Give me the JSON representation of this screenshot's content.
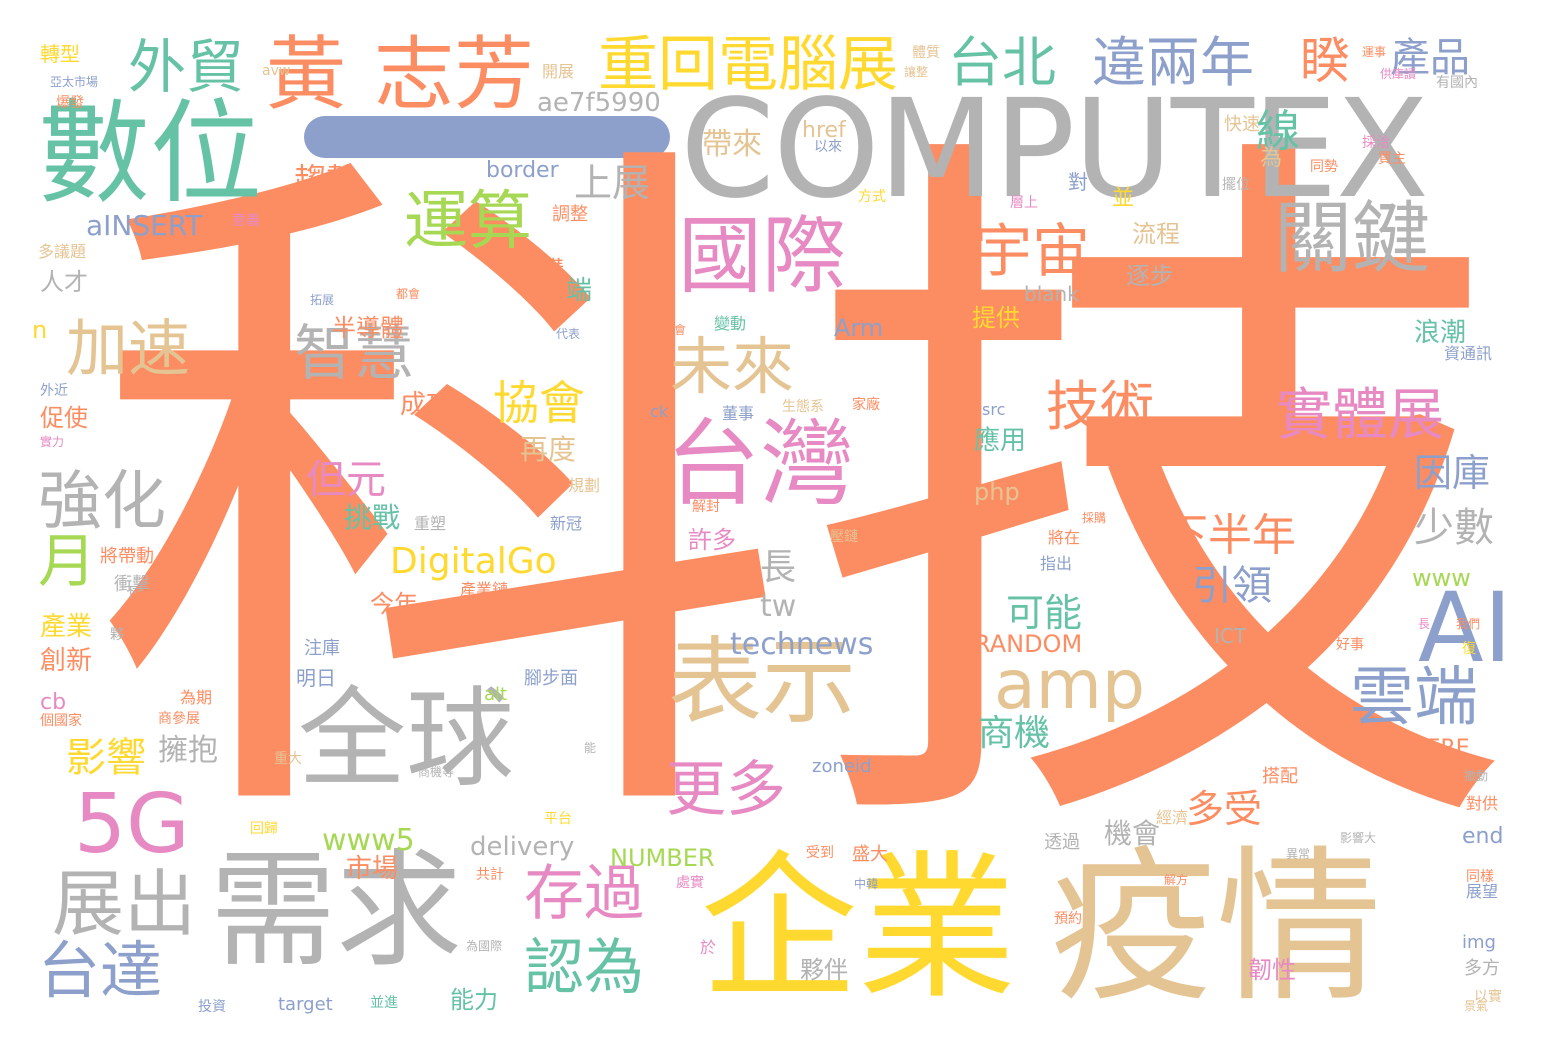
{
  "palette": {
    "orange": "#fc8d62",
    "gray": "#b3b3b3",
    "teal": "#66c2a5",
    "blue": "#8da0cb",
    "pink": "#e78ac3",
    "green": "#a6d854",
    "yellow": "#ffd92f",
    "tan": "#e5c494"
  },
  "dash_color": "#8da0cb",
  "words": [
    {
      "text": "科",
      "color": "#fc8d62"
    },
    {
      "text": "技",
      "color": "#fc8d62"
    },
    {
      "text": "COMPUTEX",
      "color": "#b3b3b3"
    },
    {
      "text": "數位",
      "color": "#66c2a5"
    },
    {
      "text": "黃",
      "color": "#fc8d62"
    },
    {
      "text": "志芳",
      "color": "#fc8d62"
    },
    {
      "text": "外貿",
      "color": "#66c2a5"
    },
    {
      "text": "重回電腦展",
      "color": "#ffd92f"
    },
    {
      "text": "台北",
      "color": "#66c2a5"
    },
    {
      "text": "違兩年",
      "color": "#8da0cb"
    },
    {
      "text": "睽",
      "color": "#fc8d62"
    },
    {
      "text": "產品",
      "color": "#8da0cb"
    },
    {
      "text": "轉型",
      "color": "#ffd92f"
    },
    {
      "text": "ae7f5990",
      "color": "#b3b3b3"
    },
    {
      "text": "國際",
      "color": "#e78ac3"
    },
    {
      "text": "關鍵",
      "color": "#b3b3b3"
    },
    {
      "text": "宇宙",
      "color": "#fc8d62"
    },
    {
      "text": "運算",
      "color": "#a6d854"
    },
    {
      "text": "加速",
      "color": "#e5c494"
    },
    {
      "text": "智慧",
      "color": "#b3b3b3"
    },
    {
      "text": "台灣",
      "color": "#e78ac3"
    },
    {
      "text": "AI",
      "color": "#8da0cb"
    },
    {
      "text": "實體展",
      "color": "#e78ac3"
    },
    {
      "text": "技術",
      "color": "#fc8d62"
    },
    {
      "text": "未來",
      "color": "#e5c494"
    },
    {
      "text": "協會",
      "color": "#ffd92f"
    },
    {
      "text": "強化",
      "color": "#b3b3b3"
    },
    {
      "text": "月",
      "color": "#a6d854"
    },
    {
      "text": "表示",
      "color": "#e5c494"
    },
    {
      "text": "amp",
      "color": "#e5c494"
    },
    {
      "text": "雲端",
      "color": "#8da0cb"
    },
    {
      "text": "全球",
      "color": "#b3b3b3"
    },
    {
      "text": "5G",
      "color": "#e78ac3"
    },
    {
      "text": "需求",
      "color": "#b3b3b3"
    },
    {
      "text": "企業",
      "color": "#ffd92f"
    },
    {
      "text": "疫情",
      "color": "#e5c494"
    },
    {
      "text": "展出",
      "color": "#b3b3b3"
    },
    {
      "text": "台達",
      "color": "#8da0cb"
    },
    {
      "text": "存過",
      "color": "#e78ac3"
    },
    {
      "text": "認為",
      "color": "#66c2a5"
    },
    {
      "text": "更多",
      "color": "#e78ac3"
    },
    {
      "text": "DigitalGo",
      "color": "#ffd92f"
    },
    {
      "text": "下半年",
      "color": "#fc8d62"
    },
    {
      "text": "引領",
      "color": "#8da0cb"
    },
    {
      "text": "可能",
      "color": "#66c2a5"
    },
    {
      "text": "因庫",
      "color": "#8da0cb"
    },
    {
      "text": "少數",
      "color": "#b3b3b3"
    },
    {
      "text": "www",
      "color": "#a6d854"
    },
    {
      "text": "technews",
      "color": "#8da0cb"
    },
    {
      "text": "www5",
      "color": "#a6d854"
    },
    {
      "text": "delivery",
      "color": "#b3b3b3"
    },
    {
      "text": "NUMBER",
      "color": "#a6d854"
    },
    {
      "text": "RANDOM",
      "color": "#fc8d62"
    },
    {
      "text": "商機",
      "color": "#66c2a5"
    },
    {
      "text": "多受",
      "color": "#fc8d62"
    },
    {
      "text": "機會",
      "color": "#b3b3b3"
    },
    {
      "text": "但元",
      "color": "#e78ac3"
    },
    {
      "text": "挑戰",
      "color": "#66c2a5"
    },
    {
      "text": "許多",
      "color": "#e78ac3"
    },
    {
      "text": "今年",
      "color": "#fc8d62"
    },
    {
      "text": "影響",
      "color": "#ffd92f"
    },
    {
      "text": "擁抱",
      "color": "#b3b3b3"
    },
    {
      "text": "趨勢",
      "color": "#fc8d62"
    },
    {
      "text": "aINSERT",
      "color": "#8da0cb"
    },
    {
      "text": "帶來",
      "color": "#e5c494"
    },
    {
      "text": "上展",
      "color": "#b3b3b3"
    },
    {
      "text": "href",
      "color": "#e5c494"
    },
    {
      "text": "border",
      "color": "#8da0cb"
    },
    {
      "text": "Arm",
      "color": "#8da0cb"
    },
    {
      "text": "流程",
      "color": "#e5c494"
    },
    {
      "text": "建構",
      "color": "#fc8d62"
    },
    {
      "text": "半導體",
      "color": "#fc8d62"
    },
    {
      "text": "成功",
      "color": "#fc8d62"
    },
    {
      "text": "提供",
      "color": "#ffd92f"
    },
    {
      "text": "逐步",
      "color": "#b3b3b3"
    },
    {
      "text": "blank",
      "color": "#b3b3b3"
    },
    {
      "text": "應用",
      "color": "#66c2a5"
    },
    {
      "text": "php",
      "color": "#e5c494"
    },
    {
      "text": "src",
      "color": "#8da0cb"
    },
    {
      "text": "浪潮",
      "color": "#66c2a5"
    },
    {
      "text": "長",
      "color": "#b3b3b3"
    },
    {
      "text": "tw",
      "color": "#b3b3b3"
    },
    {
      "text": "市場",
      "color": "#fc8d62"
    },
    {
      "text": "夥伴",
      "color": "#b3b3b3"
    },
    {
      "text": "能力",
      "color": "#66c2a5"
    },
    {
      "text": "韌性",
      "color": "#e78ac3"
    },
    {
      "text": "HERE",
      "color": "#fc8d62"
    },
    {
      "text": "end",
      "color": "#8da0cb"
    },
    {
      "text": "img",
      "color": "#8da0cb"
    },
    {
      "text": "zoneid",
      "color": "#8da0cb"
    },
    {
      "text": "target",
      "color": "#8da0cb"
    },
    {
      "text": "alt",
      "color": "#a6d854"
    },
    {
      "text": "產業",
      "color": "#ffd92f"
    },
    {
      "text": "創新",
      "color": "#fc8d62"
    },
    {
      "text": "cb",
      "color": "#e78ac3"
    },
    {
      "text": "促使",
      "color": "#fc8d62"
    },
    {
      "text": "人才",
      "color": "#b3b3b3"
    },
    {
      "text": "n",
      "color": "#ffd92f"
    },
    {
      "text": "再度",
      "color": "#e5c494"
    },
    {
      "text": "線",
      "color": "#66c2a5"
    },
    {
      "text": "為",
      "color": "#e5c494"
    },
    {
      "text": "對",
      "color": "#8da0cb"
    },
    {
      "text": "並",
      "color": "#ffd92f"
    },
    {
      "text": "端",
      "color": "#66c2a5"
    },
    {
      "text": "調整",
      "color": "#fc8d62"
    },
    {
      "text": "快速",
      "color": "#e5c494"
    },
    {
      "text": "開展",
      "color": "#e5c494"
    },
    {
      "text": "搭配",
      "color": "#fc8d62"
    },
    {
      "text": "經濟",
      "color": "#e5c494"
    },
    {
      "text": "多方",
      "color": "#b3b3b3"
    },
    {
      "text": "以實",
      "color": "#e5c494"
    },
    {
      "text": "盛大",
      "color": "#fc8d62"
    },
    {
      "text": "受到",
      "color": "#fc8d62"
    },
    {
      "text": "ICT",
      "color": "#b3b3b3"
    },
    {
      "text": "明日",
      "color": "#8da0cb"
    },
    {
      "text": "注庫",
      "color": "#8da0cb"
    },
    {
      "text": "腳步面",
      "color": "#8da0cb"
    },
    {
      "text": "多議題",
      "color": "#e5c494"
    },
    {
      "text": "衝擊",
      "color": "#b3b3b3"
    },
    {
      "text": "將帶動",
      "color": "#fc8d62"
    },
    {
      "text": "變動",
      "color": "#66c2a5"
    },
    {
      "text": "資通訊",
      "color": "#8da0cb"
    },
    {
      "text": "兩周",
      "color": "#fc8d62"
    },
    {
      "text": "透過",
      "color": "#b3b3b3"
    },
    {
      "text": "指出",
      "color": "#8da0cb"
    },
    {
      "text": "將在",
      "color": "#fc8d62"
    },
    {
      "text": "為期",
      "color": "#fc8d62"
    },
    {
      "text": "處實",
      "color": "#e78ac3"
    },
    {
      "text": "於",
      "color": "#e78ac3"
    },
    {
      "text": "展望",
      "color": "#8da0cb"
    },
    {
      "text": "同樣",
      "color": "#fc8d62"
    },
    {
      "text": "對供",
      "color": "#fc8d62"
    },
    {
      "text": "董事",
      "color": "#8da0cb"
    },
    {
      "text": "家廠",
      "color": "#fc8d62"
    },
    {
      "text": "生態系",
      "color": "#e5c494"
    },
    {
      "text": "規劃",
      "color": "#e5c494"
    },
    {
      "text": "新冠",
      "color": "#8da0cb"
    },
    {
      "text": "重塑",
      "color": "#b3b3b3"
    },
    {
      "text": "產業鏈",
      "color": "#fc8d62"
    },
    {
      "text": "共計",
      "color": "#fc8d62"
    },
    {
      "text": "平台",
      "color": "#ffd92f"
    },
    {
      "text": "並進",
      "color": "#66c2a5"
    },
    {
      "text": "投資",
      "color": "#8da0cb"
    },
    {
      "text": "回歸",
      "color": "#ffd92f"
    },
    {
      "text": "外近",
      "color": "#8da0cb"
    },
    {
      "text": "意義",
      "color": "#e78ac3"
    },
    {
      "text": "爆發",
      "color": "#fc8d62"
    },
    {
      "text": "avw",
      "color": "#e5c494"
    },
    {
      "text": "ck",
      "color": "#8da0cb"
    },
    {
      "text": "以來",
      "color": "#8da0cb"
    },
    {
      "text": "同勢",
      "color": "#fc8d62"
    },
    {
      "text": "採洽",
      "color": "#e78ac3"
    },
    {
      "text": "買主",
      "color": "#fc8d62"
    },
    {
      "text": "擺位",
      "color": "#b3b3b3"
    },
    {
      "text": "有國內",
      "color": "#b3b3b3"
    },
    {
      "text": "方式",
      "color": "#ffd92f"
    },
    {
      "text": "層上",
      "color": "#e78ac3"
    },
    {
      "text": "解封",
      "color": "#fc8d62"
    },
    {
      "text": "壓鏈",
      "color": "#e5c494"
    },
    {
      "text": "預約",
      "color": "#fc8d62"
    },
    {
      "text": "好事",
      "color": "#fc8d62"
    },
    {
      "text": "代表",
      "color": "#8da0cb"
    },
    {
      "text": "公會",
      "color": "#fc8d62"
    },
    {
      "text": "下",
      "color": "#b3b3b3"
    },
    {
      "text": "夥",
      "color": "#b3b3b3"
    },
    {
      "text": "個國家",
      "color": "#fc8d62"
    },
    {
      "text": "商參展",
      "color": "#fc8d62"
    },
    {
      "text": "重大",
      "color": "#e5c494"
    },
    {
      "text": "實力",
      "color": "#e78ac3"
    },
    {
      "text": "供庫讀",
      "color": "#e78ac3"
    },
    {
      "text": "亞太市場",
      "color": "#8da0cb"
    },
    {
      "text": "商機等",
      "color": "#b3b3b3"
    },
    {
      "text": "景氣",
      "color": "#e5c494"
    },
    {
      "text": "解方",
      "color": "#fc8d62"
    },
    {
      "text": "中韓",
      "color": "#8da0cb"
    },
    {
      "text": "為國際",
      "color": "#b3b3b3"
    },
    {
      "text": "採購",
      "color": "#fc8d62"
    },
    {
      "text": "影響大",
      "color": "#b3b3b3"
    },
    {
      "text": "異常",
      "color": "#b3b3b3"
    },
    {
      "text": "長",
      "color": "#e78ac3"
    },
    {
      "text": "復",
      "color": "#ffd92f"
    },
    {
      "text": "我們",
      "color": "#fc8d62"
    },
    {
      "text": "撤動",
      "color": "#b3b3b3"
    },
    {
      "text": "體質",
      "color": "#e5c494"
    },
    {
      "text": "讓整",
      "color": "#e5c494"
    },
    {
      "text": "都會",
      "color": "#fc8d62"
    },
    {
      "text": "拓展",
      "color": "#8da0cb"
    },
    {
      "text": "運事",
      "color": "#fc8d62"
    },
    {
      "text": "能",
      "color": "#b3b3b3"
    }
  ]
}
